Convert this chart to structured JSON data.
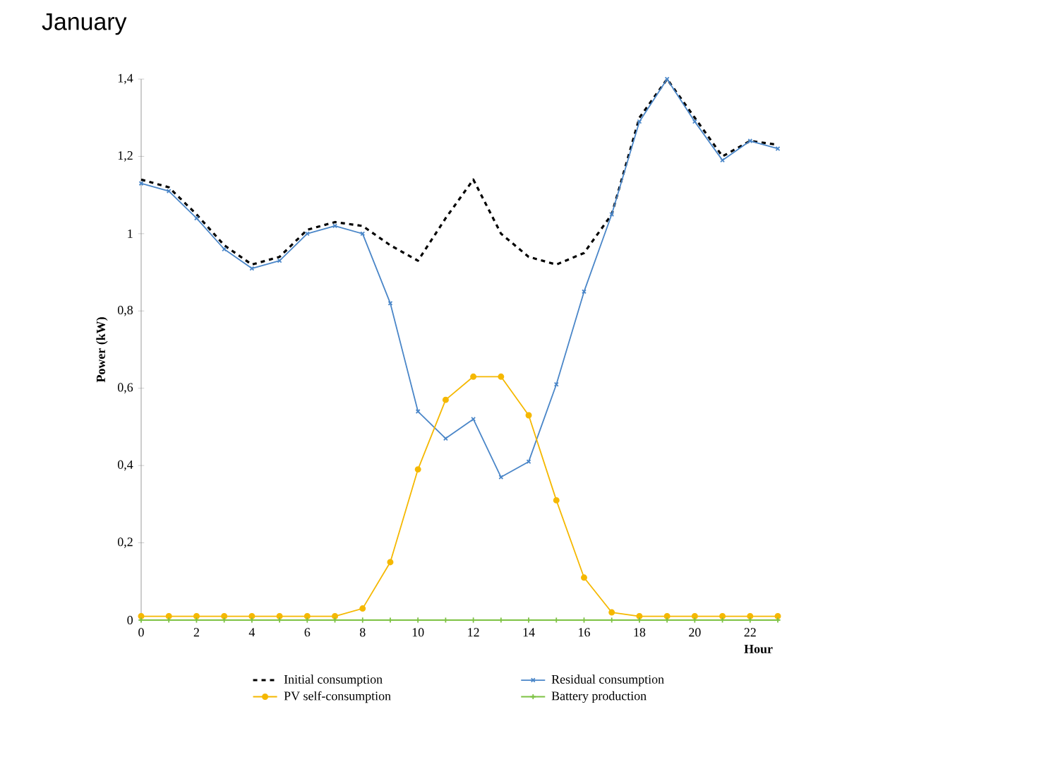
{
  "chart_data": {
    "type": "line",
    "title": "January",
    "xlabel": "Hour",
    "ylabel": "Power (kW)",
    "x": [
      0,
      1,
      2,
      3,
      4,
      5,
      6,
      7,
      8,
      9,
      10,
      11,
      12,
      13,
      14,
      15,
      16,
      17,
      18,
      19,
      20,
      21,
      22,
      23
    ],
    "xlim": [
      0,
      23
    ],
    "xticks": [
      0,
      2,
      4,
      6,
      8,
      10,
      12,
      14,
      16,
      18,
      20,
      22
    ],
    "ylim": [
      0,
      1.4
    ],
    "yticks": [
      0,
      {
        "value": 0.2,
        "label": "0,2"
      },
      {
        "value": 0.4,
        "label": "0,4"
      },
      {
        "value": 0.6,
        "label": "0,6"
      },
      {
        "value": 0.8,
        "label": "0,8"
      },
      1,
      {
        "value": 1.2,
        "label": "1,2"
      },
      {
        "value": 1.4,
        "label": "1,4"
      }
    ],
    "grid": false,
    "legend": "bottom",
    "series": [
      {
        "name": "Initial consumption",
        "color": "#000000",
        "marker": "none",
        "line_style": "dashed",
        "values": [
          1.14,
          1.12,
          1.05,
          0.97,
          0.92,
          0.94,
          1.01,
          1.03,
          1.02,
          0.97,
          0.93,
          1.04,
          1.14,
          1.0,
          0.94,
          0.92,
          0.95,
          1.05,
          1.3,
          1.4,
          1.3,
          1.2,
          1.24,
          1.23
        ]
      },
      {
        "name": "Residual consumption",
        "color": "#4a86c8",
        "marker": "cross",
        "line_style": "solid",
        "values": [
          1.13,
          1.11,
          1.04,
          0.96,
          0.91,
          0.93,
          1.0,
          1.02,
          1.0,
          0.82,
          0.54,
          0.47,
          0.52,
          0.37,
          0.41,
          0.61,
          0.85,
          1.05,
          1.29,
          1.4,
          1.29,
          1.19,
          1.24,
          1.22
        ]
      },
      {
        "name": "PV self-consumption",
        "color": "#f5b800",
        "marker": "circle",
        "line_style": "solid",
        "values": [
          0.01,
          0.01,
          0.01,
          0.01,
          0.01,
          0.01,
          0.01,
          0.01,
          0.03,
          0.15,
          0.39,
          0.57,
          0.63,
          0.63,
          0.53,
          0.31,
          0.11,
          0.02,
          0.01,
          0.01,
          0.01,
          0.01,
          0.01,
          0.01
        ]
      },
      {
        "name": "Battery production",
        "color": "#7dc243",
        "marker": "plus",
        "line_style": "solid",
        "values": [
          0,
          0,
          0,
          0,
          0,
          0,
          0,
          0,
          0,
          0,
          0,
          0,
          0,
          0,
          0,
          0,
          0,
          0,
          0,
          0,
          0,
          0,
          0,
          0
        ]
      }
    ]
  }
}
